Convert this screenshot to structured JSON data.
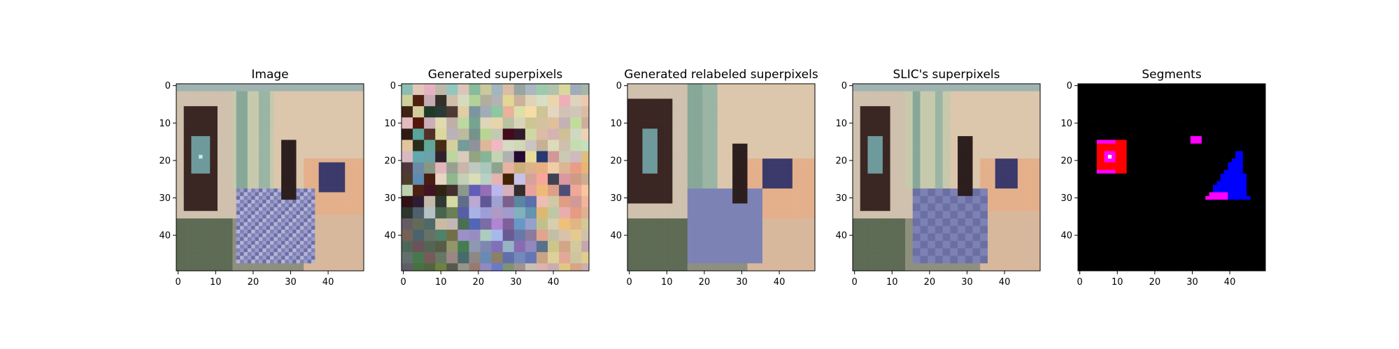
{
  "chart_data": [
    {
      "type": "image",
      "title": "Image",
      "xticks": [
        0,
        10,
        20,
        30,
        40
      ],
      "yticks": [
        0,
        10,
        20,
        30,
        40
      ],
      "xlim": [
        -0.5,
        49.5
      ],
      "ylim": [
        49.5,
        -0.5
      ],
      "description": "pixelated photo of a bedroom: dark wooden cabinet on left, window, bed with purple blanket on right"
    },
    {
      "type": "image",
      "title": "Generated superpixels",
      "xticks": [
        0,
        10,
        20,
        30,
        40
      ],
      "yticks": [
        0,
        10,
        20,
        30,
        40
      ],
      "xlim": [
        -0.5,
        49.5
      ],
      "ylim": [
        49.5,
        -0.5
      ]
    },
    {
      "type": "image",
      "title": "Generated relabeled superpixels",
      "xticks": [
        0,
        10,
        20,
        30,
        40
      ],
      "yticks": [
        0,
        10,
        20,
        30,
        40
      ],
      "xlim": [
        -0.5,
        49.5
      ],
      "ylim": [
        49.5,
        -0.5
      ]
    },
    {
      "type": "image",
      "title": "SLIC's superpixels",
      "xticks": [
        0,
        10,
        20,
        30,
        40
      ],
      "yticks": [
        0,
        10,
        20,
        30,
        40
      ],
      "xlim": [
        -0.5,
        49.5
      ],
      "ylim": [
        49.5,
        -0.5
      ]
    },
    {
      "type": "image",
      "title": "Segments",
      "xticks": [
        0,
        10,
        20,
        30,
        40
      ],
      "yticks": [
        0,
        10,
        20,
        30,
        40
      ],
      "xlim": [
        -0.5,
        49.5
      ],
      "ylim": [
        49.5,
        -0.5
      ],
      "segments": [
        {
          "label": "red-segment",
          "color": "#ff0000",
          "x_range": [
            5,
            12
          ],
          "y_range": [
            15,
            23
          ]
        },
        {
          "label": "magenta-segment",
          "color": "#ff00ff",
          "x_range": [
            30,
            32
          ],
          "y_range": [
            14,
            15
          ]
        },
        {
          "label": "blue-segment",
          "color": "#0000ff",
          "x_range": [
            34,
            45
          ],
          "y_range": [
            18,
            30
          ]
        }
      ]
    }
  ]
}
